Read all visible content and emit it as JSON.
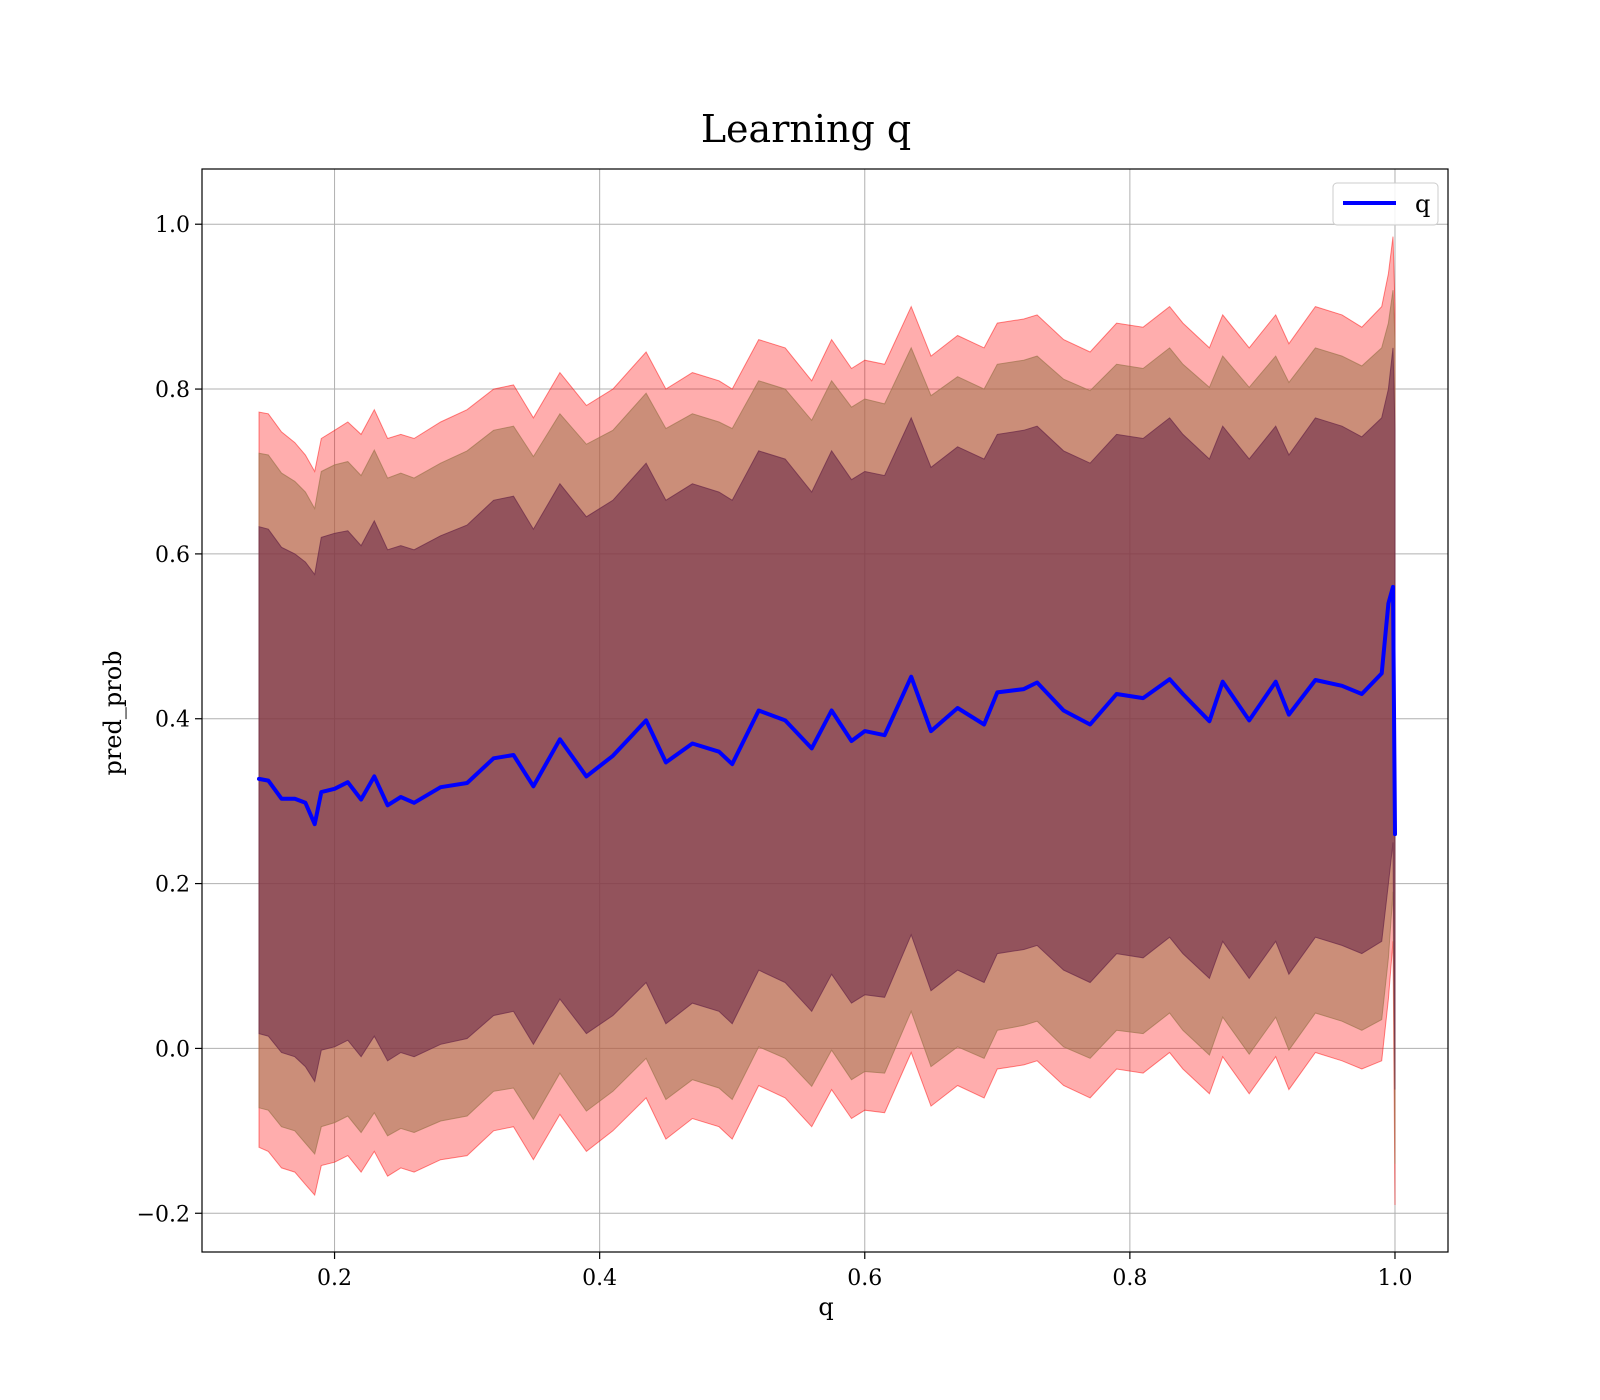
{
  "chart_data": {
    "type": "area",
    "title": "Learning q",
    "xlabel": "q",
    "ylabel": "pred_prob",
    "xlim": [
      0.1,
      1.04
    ],
    "ylim": [
      -0.247,
      1.067
    ],
    "xticks": [
      0.2,
      0.4,
      0.6,
      0.8,
      1.0
    ],
    "xtick_labels": [
      "0.2",
      "0.4",
      "0.6",
      "0.8",
      "1.0"
    ],
    "yticks": [
      -0.2,
      0.0,
      0.2,
      0.4,
      0.6,
      0.8,
      1.0
    ],
    "ytick_labels": [
      "−0.2",
      "0.0",
      "0.2",
      "0.4",
      "0.6",
      "0.8",
      "1.0"
    ],
    "grid": true,
    "legend": {
      "placement": "top-right",
      "entries": [
        {
          "label": "q",
          "color": "#0000ff"
        }
      ]
    },
    "x": [
      0.143,
      0.15,
      0.16,
      0.17,
      0.178,
      0.185,
      0.19,
      0.2,
      0.21,
      0.22,
      0.23,
      0.24,
      0.25,
      0.26,
      0.28,
      0.3,
      0.32,
      0.335,
      0.35,
      0.37,
      0.39,
      0.41,
      0.435,
      0.45,
      0.47,
      0.49,
      0.5,
      0.52,
      0.54,
      0.56,
      0.575,
      0.59,
      0.6,
      0.615,
      0.635,
      0.65,
      0.67,
      0.69,
      0.7,
      0.72,
      0.73,
      0.75,
      0.77,
      0.79,
      0.81,
      0.83,
      0.84,
      0.86,
      0.87,
      0.89,
      0.91,
      0.92,
      0.94,
      0.96,
      0.975,
      0.99,
      0.995,
      0.9985,
      1.0
    ],
    "series": [
      {
        "name": "q",
        "color": "#0000ff",
        "y": [
          0.327,
          0.325,
          0.303,
          0.303,
          0.298,
          0.272,
          0.311,
          0.315,
          0.323,
          0.302,
          0.33,
          0.295,
          0.305,
          0.298,
          0.317,
          0.322,
          0.352,
          0.356,
          0.318,
          0.375,
          0.33,
          0.355,
          0.398,
          0.347,
          0.37,
          0.36,
          0.345,
          0.41,
          0.398,
          0.364,
          0.41,
          0.373,
          0.385,
          0.38,
          0.451,
          0.385,
          0.413,
          0.393,
          0.432,
          0.436,
          0.444,
          0.41,
          0.393,
          0.43,
          0.425,
          0.448,
          0.43,
          0.397,
          0.445,
          0.398,
          0.445,
          0.405,
          0.447,
          0.44,
          0.43,
          0.455,
          0.54,
          0.56,
          0.26
        ]
      }
    ],
    "bands": [
      {
        "level": "outer",
        "color": "#ff0000",
        "opacity": 0.32,
        "upper": [
          0.772,
          0.77,
          0.748,
          0.735,
          0.72,
          0.7,
          0.74,
          0.75,
          0.76,
          0.745,
          0.775,
          0.74,
          0.745,
          0.74,
          0.76,
          0.775,
          0.8,
          0.805,
          0.765,
          0.82,
          0.78,
          0.8,
          0.845,
          0.8,
          0.82,
          0.81,
          0.8,
          0.86,
          0.85,
          0.81,
          0.86,
          0.825,
          0.835,
          0.83,
          0.9,
          0.84,
          0.865,
          0.85,
          0.88,
          0.885,
          0.89,
          0.86,
          0.845,
          0.88,
          0.875,
          0.9,
          0.88,
          0.85,
          0.89,
          0.85,
          0.89,
          0.855,
          0.9,
          0.89,
          0.875,
          0.9,
          0.94,
          0.985,
          0.9
        ],
        "lower": [
          -0.12,
          -0.125,
          -0.145,
          -0.15,
          -0.165,
          -0.178,
          -0.142,
          -0.138,
          -0.13,
          -0.15,
          -0.125,
          -0.155,
          -0.145,
          -0.15,
          -0.135,
          -0.13,
          -0.1,
          -0.095,
          -0.135,
          -0.08,
          -0.125,
          -0.1,
          -0.06,
          -0.11,
          -0.085,
          -0.095,
          -0.11,
          -0.045,
          -0.06,
          -0.095,
          -0.05,
          -0.085,
          -0.075,
          -0.078,
          -0.005,
          -0.07,
          -0.045,
          -0.06,
          -0.025,
          -0.02,
          -0.015,
          -0.045,
          -0.06,
          -0.025,
          -0.03,
          -0.005,
          -0.025,
          -0.055,
          -0.01,
          -0.055,
          -0.01,
          -0.05,
          -0.005,
          -0.015,
          -0.025,
          -0.015,
          0.06,
          0.13,
          -0.19
        ]
      },
      {
        "level": "middle",
        "color": "#a0754f",
        "opacity": 0.55,
        "upper": [
          0.722,
          0.72,
          0.698,
          0.688,
          0.675,
          0.655,
          0.7,
          0.708,
          0.712,
          0.695,
          0.726,
          0.692,
          0.698,
          0.692,
          0.71,
          0.725,
          0.75,
          0.755,
          0.718,
          0.77,
          0.733,
          0.75,
          0.795,
          0.752,
          0.77,
          0.76,
          0.752,
          0.81,
          0.8,
          0.762,
          0.81,
          0.778,
          0.788,
          0.782,
          0.85,
          0.792,
          0.815,
          0.8,
          0.83,
          0.835,
          0.84,
          0.812,
          0.798,
          0.83,
          0.825,
          0.85,
          0.83,
          0.802,
          0.84,
          0.802,
          0.84,
          0.808,
          0.85,
          0.84,
          0.828,
          0.85,
          0.88,
          0.92,
          0.86
        ],
        "lower": [
          -0.072,
          -0.075,
          -0.095,
          -0.1,
          -0.115,
          -0.128,
          -0.095,
          -0.09,
          -0.082,
          -0.102,
          -0.078,
          -0.106,
          -0.097,
          -0.102,
          -0.088,
          -0.082,
          -0.052,
          -0.048,
          -0.086,
          -0.03,
          -0.076,
          -0.052,
          -0.012,
          -0.062,
          -0.038,
          -0.048,
          -0.062,
          0.002,
          -0.012,
          -0.046,
          -0.002,
          -0.038,
          -0.028,
          -0.03,
          0.045,
          -0.022,
          0.002,
          -0.012,
          0.022,
          0.028,
          0.033,
          0.002,
          -0.012,
          0.022,
          0.018,
          0.043,
          0.022,
          -0.008,
          0.038,
          -0.007,
          0.038,
          -0.002,
          0.043,
          0.033,
          0.022,
          0.035,
          0.11,
          0.19,
          -0.14
        ]
      },
      {
        "level": "inner",
        "color": "#6e2c4a",
        "opacity": 0.6,
        "upper": [
          0.633,
          0.63,
          0.608,
          0.6,
          0.59,
          0.575,
          0.62,
          0.625,
          0.628,
          0.61,
          0.64,
          0.605,
          0.61,
          0.605,
          0.622,
          0.635,
          0.665,
          0.67,
          0.63,
          0.685,
          0.645,
          0.665,
          0.71,
          0.665,
          0.685,
          0.675,
          0.665,
          0.725,
          0.715,
          0.675,
          0.725,
          0.69,
          0.7,
          0.695,
          0.765,
          0.705,
          0.73,
          0.715,
          0.745,
          0.75,
          0.755,
          0.725,
          0.71,
          0.745,
          0.74,
          0.765,
          0.745,
          0.715,
          0.755,
          0.715,
          0.755,
          0.72,
          0.765,
          0.755,
          0.742,
          0.765,
          0.8,
          0.85,
          0.75
        ],
        "lower": [
          0.018,
          0.015,
          -0.005,
          -0.01,
          -0.022,
          -0.04,
          -0.002,
          0.002,
          0.01,
          -0.01,
          0.015,
          -0.015,
          -0.005,
          -0.01,
          0.005,
          0.012,
          0.04,
          0.045,
          0.005,
          0.06,
          0.018,
          0.04,
          0.08,
          0.03,
          0.055,
          0.045,
          0.03,
          0.095,
          0.08,
          0.045,
          0.09,
          0.055,
          0.065,
          0.062,
          0.138,
          0.07,
          0.095,
          0.08,
          0.115,
          0.12,
          0.125,
          0.095,
          0.08,
          0.115,
          0.11,
          0.135,
          0.115,
          0.085,
          0.13,
          0.085,
          0.13,
          0.09,
          0.135,
          0.125,
          0.115,
          0.13,
          0.2,
          0.25,
          -0.05
        ]
      }
    ]
  }
}
